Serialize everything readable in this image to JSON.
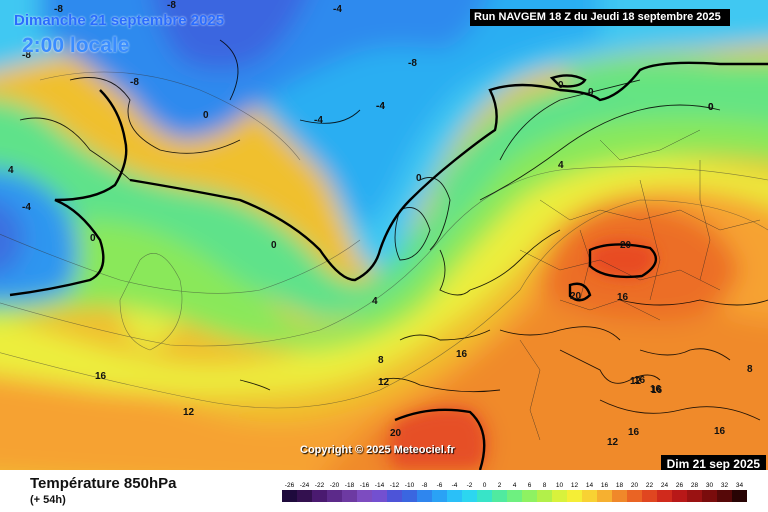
{
  "header": {
    "date_title": "Dimanche 21 septembre 2025",
    "time_title": "2:00 locale",
    "run_info": "Run NAVGEM 18 Z du Jeudi 18 septembre 2025",
    "bottom_date": "Dim 21 sep 2025",
    "copyright": "Copyright © 2025 Meteociel.fr"
  },
  "legend": {
    "field_title": "Température 850hPa",
    "lead_time": "(+ 54h)",
    "scale_values": [
      "-26",
      "-24",
      "-22",
      "-20",
      "-18",
      "-16",
      "-14",
      "-12",
      "-10",
      "-8",
      "-6",
      "-4",
      "-2",
      "0",
      "2",
      "4",
      "6",
      "8",
      "10",
      "12",
      "14",
      "16",
      "18",
      "20",
      "22",
      "24",
      "26",
      "28",
      "30",
      "32",
      "34"
    ],
    "scale_colors": [
      "#1e0a3c",
      "#33104f",
      "#4a1a70",
      "#5c2a8a",
      "#6d3aa2",
      "#7d4cc0",
      "#7350d0",
      "#4d54d8",
      "#3a66e0",
      "#2f86ee",
      "#2aa2f5",
      "#2ac0f8",
      "#2cd6f0",
      "#38e4c8",
      "#50eaa0",
      "#6ef080",
      "#8ef262",
      "#b2f04a",
      "#d8f23c",
      "#f5ee36",
      "#f8d233",
      "#f6b030",
      "#f0882a",
      "#ea6424",
      "#e04620",
      "#d02a1c",
      "#b81818",
      "#9a1212",
      "#7a0c0c",
      "#560808",
      "#280404"
    ]
  },
  "map": {
    "contour_labels": [
      "-8",
      "-8",
      "-4",
      "-8",
      "-8",
      "-8",
      "-4",
      "-4",
      "0",
      "-4",
      "0",
      "0",
      "0",
      "0",
      "-4",
      "0",
      "0",
      "4",
      "4",
      "0",
      "20",
      "20",
      "16",
      "16",
      "4",
      "8",
      "12",
      "16",
      "12",
      "16",
      "20",
      "12",
      "16",
      "16",
      "8",
      "12",
      "16",
      "16",
      "20"
    ]
  }
}
